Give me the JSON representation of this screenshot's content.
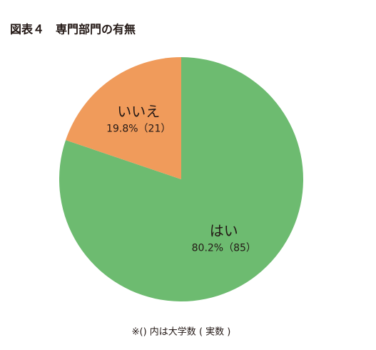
{
  "chart_data": {
    "type": "pie",
    "title": "図表４　専門部門の有無",
    "categories": [
      "はい",
      "いいえ"
    ],
    "values": [
      80.2,
      19.8
    ],
    "value_labels": [
      "80.2%（85）",
      "19.8%（21）"
    ],
    "colors": [
      "#6dbb70",
      "#f09b5b"
    ],
    "note": "※() 内は大学数 ( 実数 )"
  }
}
